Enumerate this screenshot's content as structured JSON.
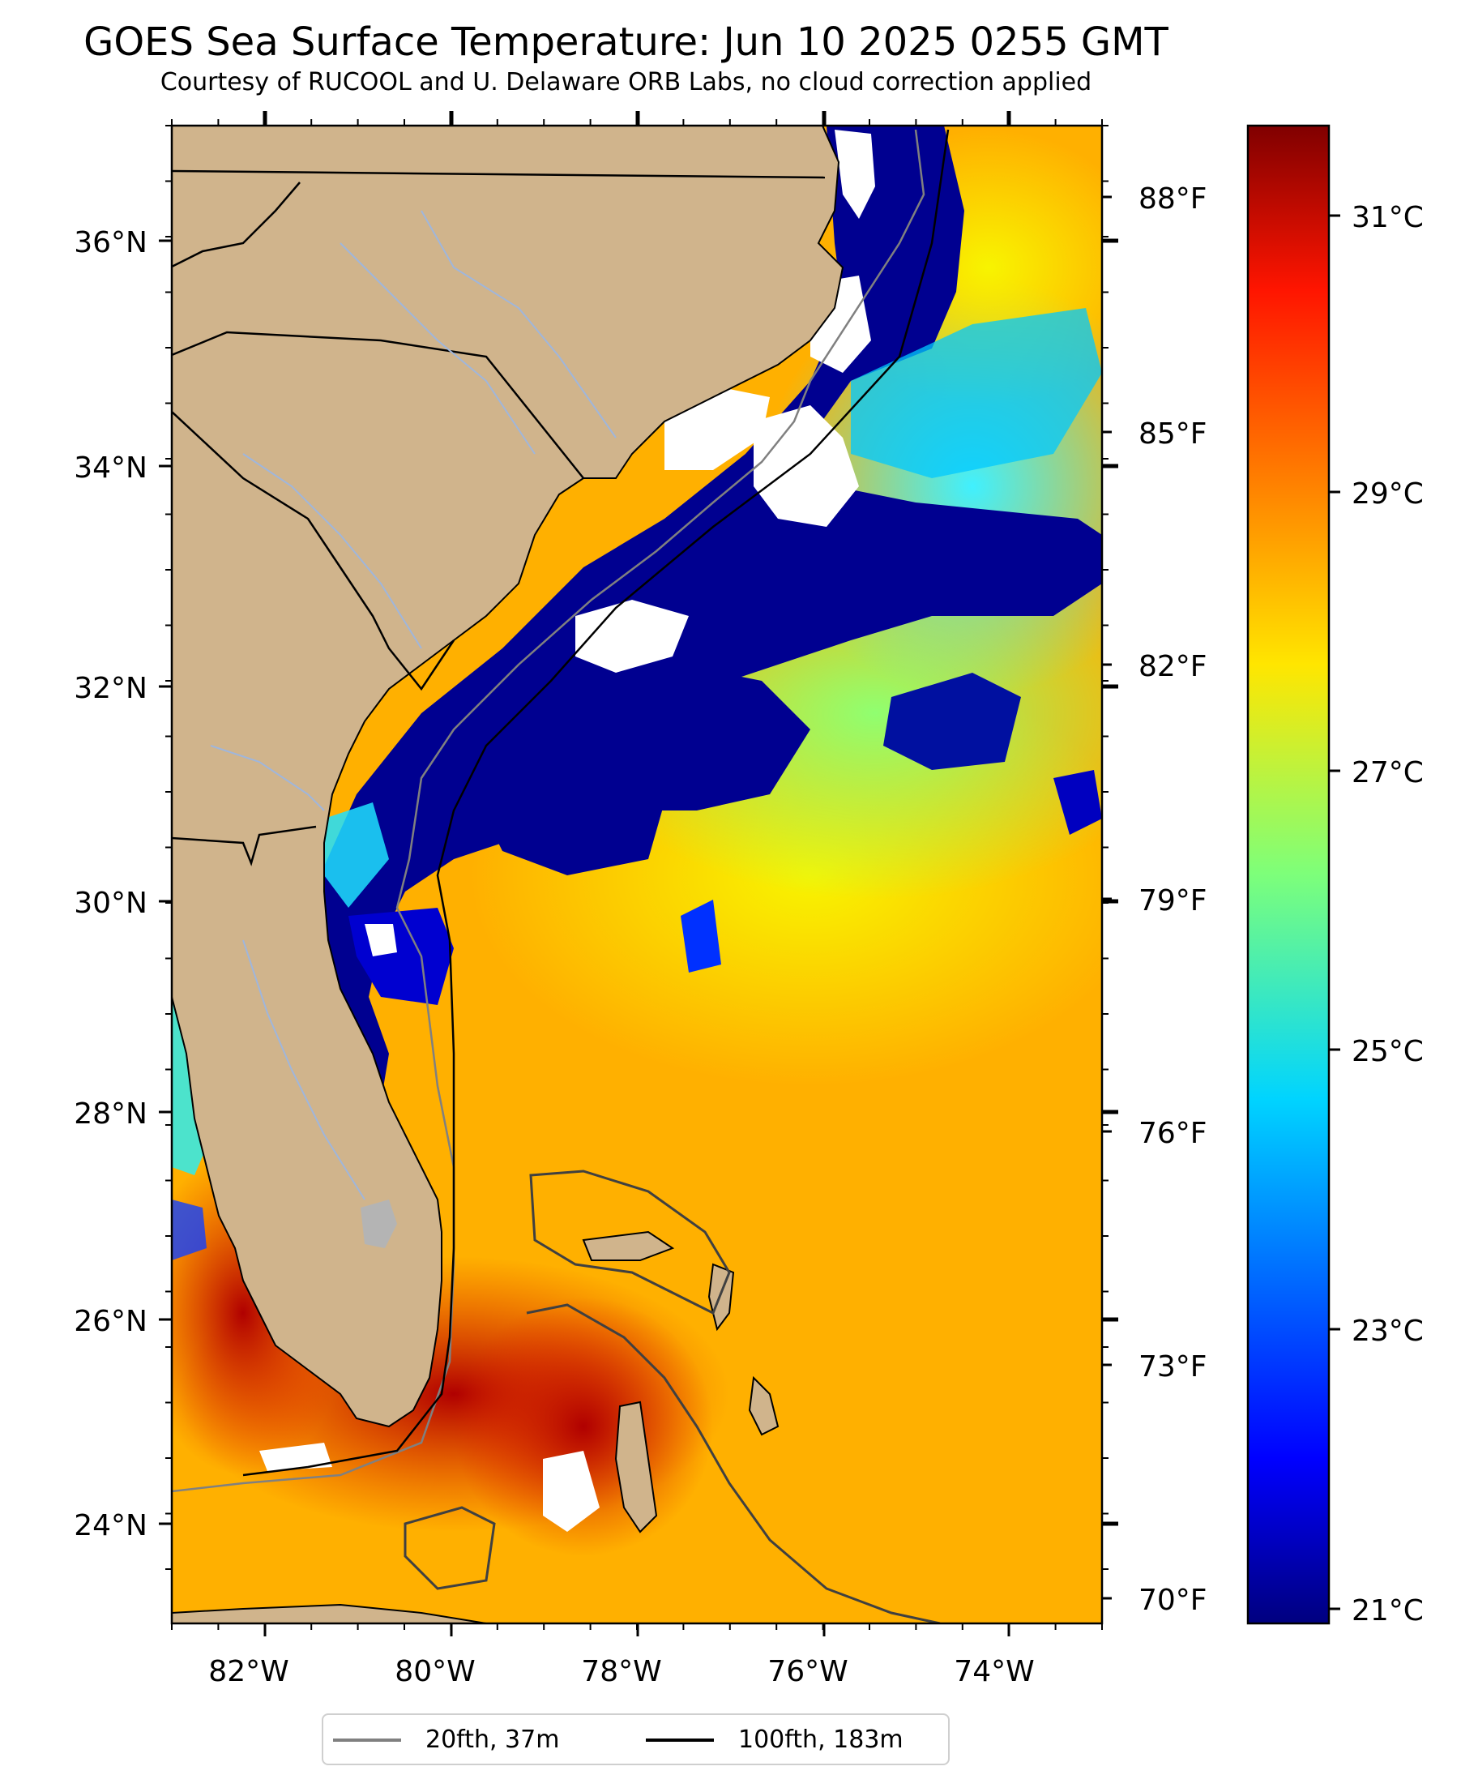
{
  "title": "GOES Sea Surface Temperature: Jun 10 2025 0255 GMT",
  "subtitle": "Courtesy of RUCOOL and U. Delaware ORB Labs, no cloud correction applied",
  "map": {
    "longitude_labels": [
      "82°W",
      "80°W",
      "78°W",
      "76°W",
      "74°W"
    ],
    "latitude_labels": [
      "36°N",
      "34°N",
      "32°N",
      "30°N",
      "28°N",
      "26°N",
      "24°N"
    ],
    "fahrenheit_labels": [
      "88°F",
      "85°F",
      "82°F",
      "79°F",
      "76°F",
      "73°F",
      "70°F"
    ],
    "colors": {
      "land": "#d0b48c",
      "cloud_mask": "#ffffff",
      "lake": "#b4b4b4",
      "rivers": "#9fb6dc",
      "isobath_20fth": "#808080",
      "isobath_100fth": "#000000"
    },
    "colormap": "jet"
  },
  "colorbar": {
    "labels": [
      "31°C",
      "29°C",
      "27°C",
      "25°C",
      "23°C",
      "21°C"
    ],
    "range_c": [
      20.8,
      31.7
    ]
  },
  "legend": [
    {
      "label": "20fth, 37m",
      "color": "#808080"
    },
    {
      "label": "100fth, 183m",
      "color": "#000000"
    }
  ]
}
